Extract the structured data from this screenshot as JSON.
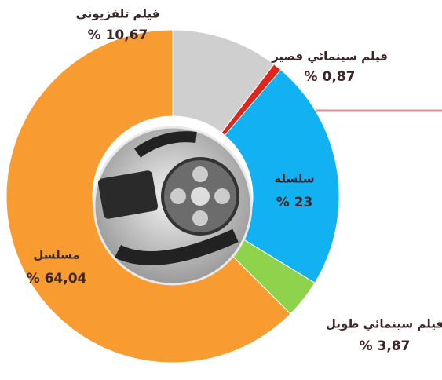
{
  "chart_data": {
    "type": "donut",
    "categories": [
      "فيلم تلفزيوني",
      "فيلم سينمائي قصير",
      "سلسلة",
      "فيلم سينمائي طويل",
      "مسلسل"
    ],
    "values": [
      10.67,
      0.87,
      23,
      3.87,
      64.04
    ],
    "value_labels": [
      "% 10,67",
      "% 0,87",
      "% 23",
      "% 3,87",
      "% 64,04"
    ],
    "colors": [
      "#cfcfcf",
      "#e0261c",
      "#12b2f2",
      "#8fd34c",
      "#f89b30"
    ]
  }
}
